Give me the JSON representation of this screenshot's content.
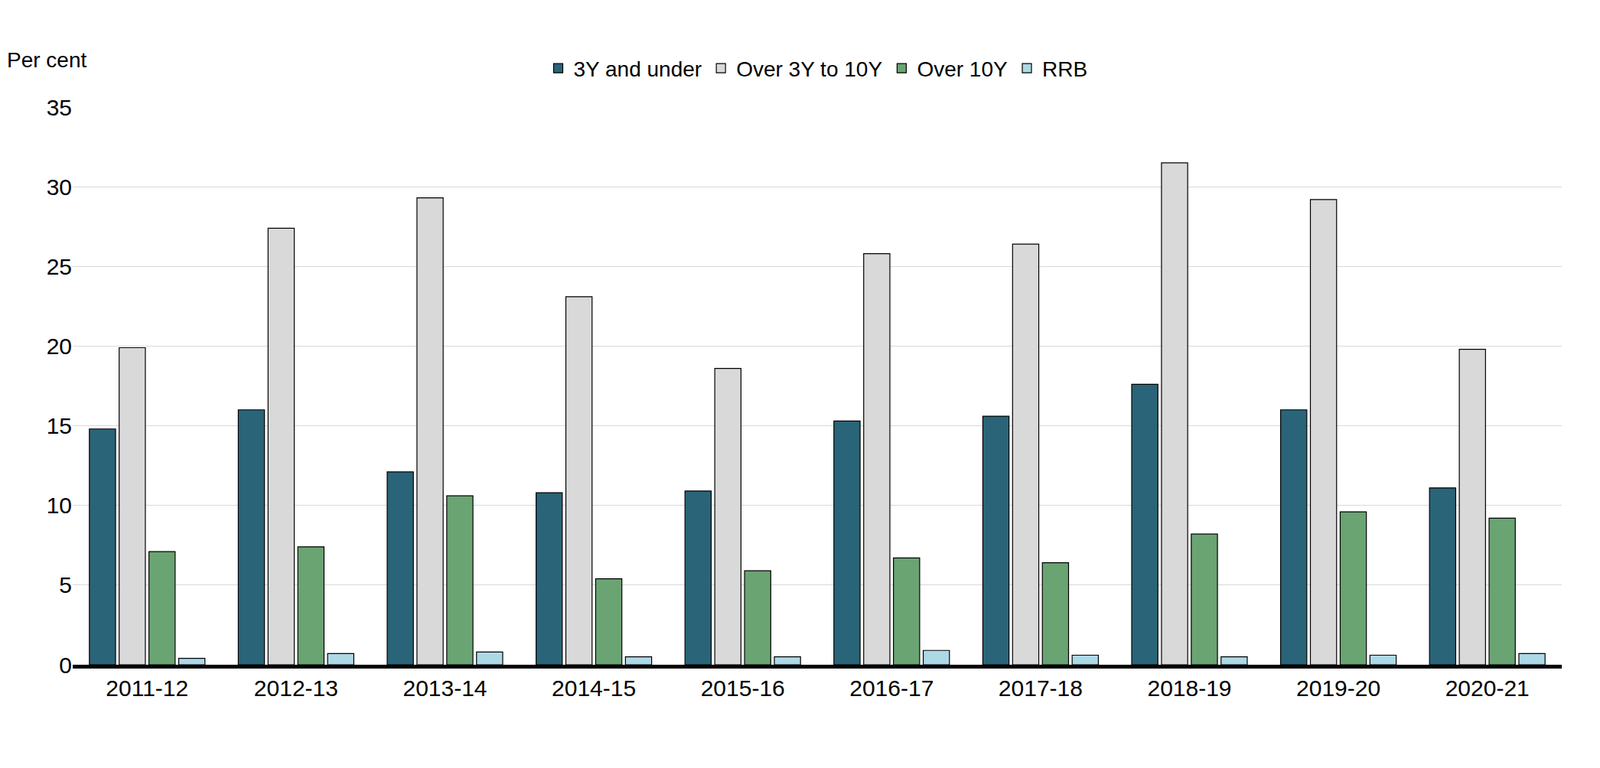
{
  "chart_data": {
    "type": "bar",
    "y_label": "Per cent",
    "categories": [
      "2011-12",
      "2012-13",
      "2013-14",
      "2014-15",
      "2015-16",
      "2016-17",
      "2017-18",
      "2018-19",
      "2019-20",
      "2020-21"
    ],
    "series": [
      {
        "name": "3Y and under",
        "color": "#2a6478",
        "values": [
          14.8,
          16.0,
          12.1,
          10.8,
          10.9,
          15.3,
          15.6,
          17.6,
          16.0,
          11.1
        ]
      },
      {
        "name": "Over 3Y to 10Y",
        "color": "#d9d9d9",
        "values": [
          19.9,
          27.4,
          29.3,
          23.1,
          18.6,
          25.8,
          26.4,
          31.5,
          29.2,
          19.8
        ]
      },
      {
        "name": "Over 10Y",
        "color": "#6aa472",
        "values": [
          7.1,
          7.4,
          10.6,
          5.4,
          5.9,
          6.7,
          6.4,
          8.2,
          9.6,
          9.2
        ]
      },
      {
        "name": "RRB",
        "color": "#add8e6",
        "values": [
          0.4,
          0.7,
          0.8,
          0.5,
          0.5,
          0.9,
          0.6,
          0.5,
          0.6,
          0.7
        ]
      }
    ],
    "ylim": [
      0,
      35
    ],
    "yticks": [
      0,
      5,
      10,
      15,
      20,
      25,
      30,
      35
    ],
    "grid": true,
    "legend": "top"
  }
}
